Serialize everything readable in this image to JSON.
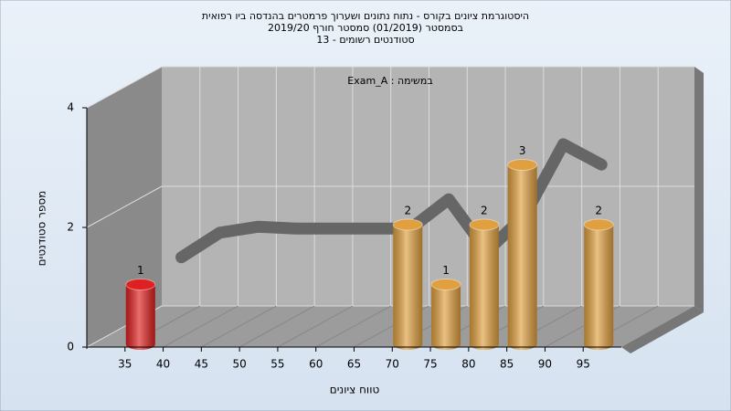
{
  "chart_data": {
    "type": "bar3d",
    "title": [
      "היסטוגרמת ציונים בקורס - נתוח נתונים ושערוך פרמטרים בהנדסה ביו רפואית",
      "בסמסטר  (01/2019)  סמסטר חורף 2019/20",
      "סטודנטים רשומים - 13"
    ],
    "annotation": "Exam_A : במשימה",
    "x_label": "טווח ציונים",
    "y_label": "מספר סטודנטים",
    "x": [
      35,
      40,
      45,
      50,
      55,
      60,
      65,
      70,
      75,
      80,
      85,
      90,
      95
    ],
    "values": [
      1,
      0,
      0,
      0,
      0,
      0,
      0,
      2,
      1,
      2,
      3,
      0,
      2
    ],
    "colors": [
      "#e02020",
      "#e0a040",
      "#e0a040",
      "#e0a040",
      "#e0a040",
      "#e0a040",
      "#e0a040",
      "#e0a040",
      "#e0a040",
      "#e0a040",
      "#e0a040",
      "#e0a040",
      "#e0a040"
    ],
    "curve": [
      null,
      0.89,
      1.3,
      1.4,
      1.37,
      1.37,
      1.37,
      1.37,
      1.86,
      0.99,
      1.6,
      2.78,
      2.44
    ],
    "curve_color": "#666666",
    "xlim": [
      30,
      100
    ],
    "xticks": [
      35,
      40,
      45,
      50,
      55,
      60,
      65,
      70,
      75,
      80,
      85,
      90,
      95
    ],
    "ylim": [
      0,
      4
    ],
    "yticks": [
      0,
      2,
      4
    ],
    "grid": true
  }
}
